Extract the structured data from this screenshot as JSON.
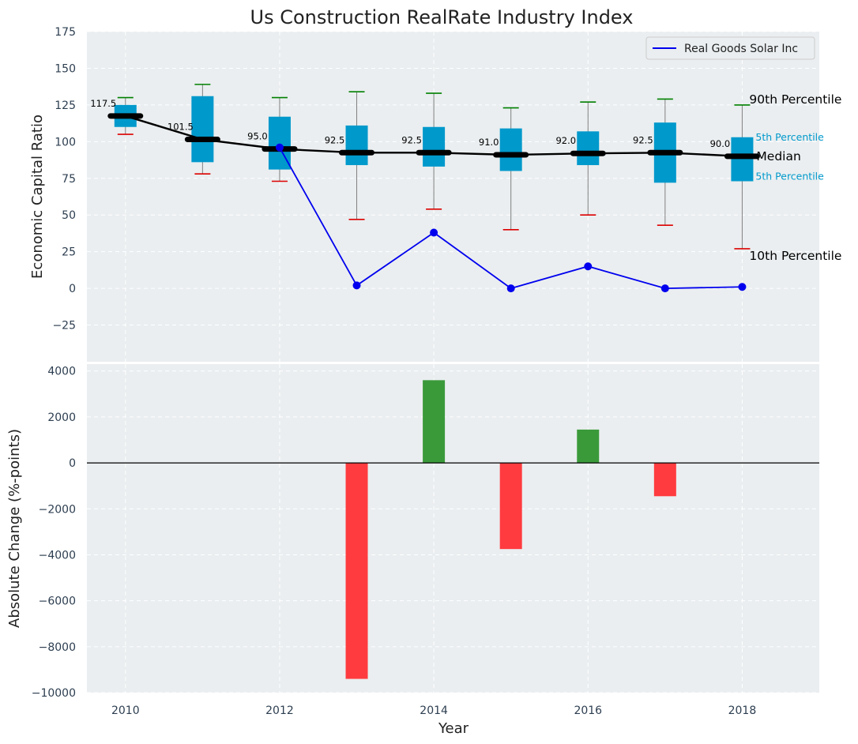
{
  "colors": {
    "panel_bg": "#eaeef0",
    "grid": "#ffffff",
    "box_fill": "#0099cc",
    "whisker": "#808080",
    "cap_high": "#008000",
    "cap_low": "#dd0000",
    "median_line": "#000000",
    "company_line": "#0000ee",
    "bar_positive": "#3a9a3a",
    "bar_negative": "#ff3b3f",
    "small_label": "#0099cc"
  },
  "chart_data": [
    {
      "type": "box",
      "title": "Us Construction RealRate Industry Index",
      "xlabel": "",
      "ylabel": "Economic Capital Ratio",
      "ylim": [
        -50,
        175
      ],
      "yticks": [
        -25,
        0,
        25,
        50,
        75,
        100,
        125,
        150,
        175
      ],
      "grid": true,
      "x": [
        2010,
        2011,
        2012,
        2013,
        2014,
        2015,
        2016,
        2017,
        2018
      ],
      "boxes": [
        {
          "year": 2010,
          "p10": 105,
          "q1": 110,
          "median": 117.5,
          "q3": 125,
          "p90": 130
        },
        {
          "year": 2011,
          "p10": 78,
          "q1": 86,
          "median": 101.5,
          "q3": 131,
          "p90": 139
        },
        {
          "year": 2012,
          "p10": 73,
          "q1": 81,
          "median": 95.0,
          "q3": 117,
          "p90": 130
        },
        {
          "year": 2013,
          "p10": 47,
          "q1": 84,
          "median": 92.5,
          "q3": 111,
          "p90": 134
        },
        {
          "year": 2014,
          "p10": 54,
          "q1": 83,
          "median": 92.5,
          "q3": 110,
          "p90": 133
        },
        {
          "year": 2015,
          "p10": 40,
          "q1": 80,
          "median": 91.0,
          "q3": 109,
          "p90": 123
        },
        {
          "year": 2016,
          "p10": 50,
          "q1": 84,
          "median": 92.0,
          "q3": 107,
          "p90": 127
        },
        {
          "year": 2017,
          "p10": 43,
          "q1": 72,
          "median": 92.5,
          "q3": 113,
          "p90": 129
        },
        {
          "year": 2018,
          "p10": 27,
          "q1": 73,
          "median": 90.0,
          "q3": 103,
          "p90": 125
        }
      ],
      "median_labels": [
        "117.5",
        "101.5",
        "95.0",
        "92.5",
        "92.5",
        "91.0",
        "92.0",
        "92.5",
        "90.0"
      ],
      "series": [
        {
          "name": "Real Goods Solar Inc",
          "x": [
            2012,
            2013,
            2014,
            2015,
            2016,
            2017,
            2018
          ],
          "values": [
            96,
            2,
            38,
            0,
            15,
            0,
            1
          ]
        }
      ],
      "legend": {
        "placement": "top-right",
        "entries": [
          "Real Goods Solar Inc"
        ]
      },
      "annotations": {
        "p90": "90th Percentile",
        "q3": "5th Percentile",
        "median": "Median",
        "q1": "5th Percentile",
        "p10": "10th Percentile"
      }
    },
    {
      "type": "bar",
      "xlabel": "Year",
      "ylabel": "Absolute Change (%-points)",
      "ylim": [
        -10000,
        4300
      ],
      "yticks": [
        -10000,
        -8000,
        -6000,
        -4000,
        -2000,
        0,
        2000,
        4000
      ],
      "xlim": [
        2009.5,
        2019
      ],
      "xticks": [
        2010,
        2012,
        2014,
        2016,
        2018
      ],
      "grid": true,
      "x": [
        2013,
        2014,
        2015,
        2016,
        2017
      ],
      "values": [
        -9400,
        3600,
        -3750,
        1450,
        -1450
      ]
    }
  ]
}
